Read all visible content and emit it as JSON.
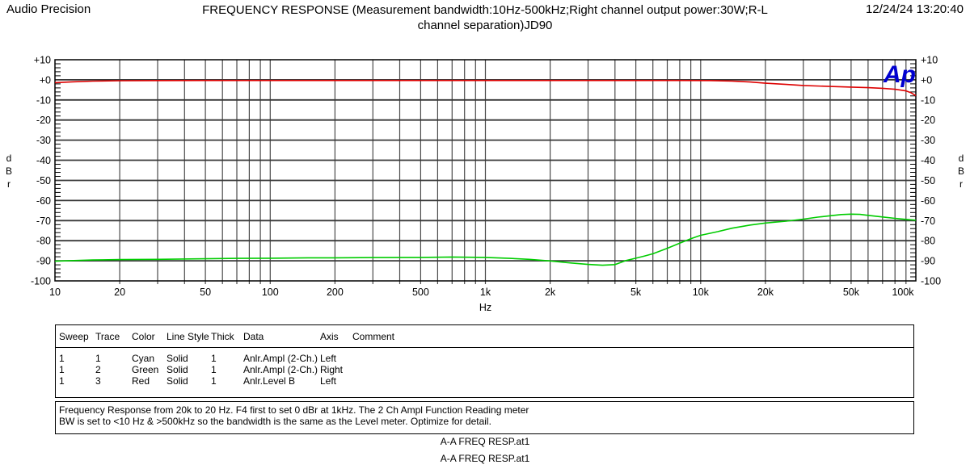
{
  "header": {
    "brand": "Audio Precision",
    "title_line1": "FREQUENCY RESPONSE  (Measurement bandwidth:10Hz-500kHz;Right channel output power:30W;R-L",
    "title_line2": "channel separation)JD90",
    "datetime": "12/24/24 13:20:40"
  },
  "chart_data": {
    "type": "line",
    "title": "FREQUENCY RESPONSE",
    "logo": "Ap",
    "logo_color": "#0000d0",
    "x_axis": {
      "label": "Hz",
      "scale": "log",
      "min": 10,
      "max": 100000,
      "ticks": [
        {
          "label": "10",
          "value": 10
        },
        {
          "label": "20",
          "value": 20
        },
        {
          "label": "50",
          "value": 50
        },
        {
          "label": "100",
          "value": 100
        },
        {
          "label": "200",
          "value": 200
        },
        {
          "label": "500",
          "value": 500
        },
        {
          "label": "1k",
          "value": 1000
        },
        {
          "label": "2k",
          "value": 2000
        },
        {
          "label": "5k",
          "value": 5000
        },
        {
          "label": "10k",
          "value": 10000
        },
        {
          "label": "20k",
          "value": 20000
        },
        {
          "label": "50k",
          "value": 50000
        },
        {
          "label": "100k",
          "value": 100000
        }
      ]
    },
    "y_axis": {
      "label": "dBr",
      "label_stacked": "d\nB\nr",
      "min": -100,
      "max": 10,
      "major_step": 10,
      "minor_step": 2,
      "tick_labels": [
        "+10",
        "+0",
        "-10",
        "-20",
        "-30",
        "-40",
        "-50",
        "-60",
        "-70",
        "-80",
        "-90",
        "-100"
      ]
    },
    "grid": true,
    "series": [
      {
        "key": "level-b",
        "name": "Anlr.Level B",
        "color": "#dd0000",
        "axis": "Left",
        "points": [
          [
            10,
            -1.4
          ],
          [
            12,
            -1.0
          ],
          [
            15,
            -0.65
          ],
          [
            20,
            -0.45
          ],
          [
            30,
            -0.35
          ],
          [
            50,
            -0.3
          ],
          [
            100,
            -0.3
          ],
          [
            200,
            -0.3
          ],
          [
            500,
            -0.3
          ],
          [
            1000,
            -0.3
          ],
          [
            2000,
            -0.3
          ],
          [
            5000,
            -0.3
          ],
          [
            8000,
            -0.3
          ],
          [
            11000,
            -0.35
          ],
          [
            14000,
            -0.6
          ],
          [
            17000,
            -1.1
          ],
          [
            20000,
            -1.7
          ],
          [
            25000,
            -2.3
          ],
          [
            30000,
            -2.8
          ],
          [
            40000,
            -3.3
          ],
          [
            50000,
            -3.6
          ],
          [
            60000,
            -3.9
          ],
          [
            70000,
            -4.2
          ],
          [
            80000,
            -4.7
          ],
          [
            90000,
            -5.5
          ],
          [
            95000,
            -6.4
          ],
          [
            100000,
            -7.9
          ]
        ]
      },
      {
        "key": "ampl-2ch",
        "name": "Anlr.Ampl (2-Ch.)",
        "color": "#00cc00",
        "axis": "Right",
        "points": [
          [
            10,
            -90.2
          ],
          [
            15,
            -89.6
          ],
          [
            20,
            -89.4
          ],
          [
            30,
            -89.3
          ],
          [
            50,
            -89.0
          ],
          [
            70,
            -88.8
          ],
          [
            100,
            -88.7
          ],
          [
            150,
            -88.5
          ],
          [
            200,
            -88.5
          ],
          [
            300,
            -88.4
          ],
          [
            500,
            -88.3
          ],
          [
            700,
            -88.1
          ],
          [
            1000,
            -88.3
          ],
          [
            1300,
            -88.8
          ],
          [
            1600,
            -89.3
          ],
          [
            2000,
            -90.1
          ],
          [
            2500,
            -91.1
          ],
          [
            3000,
            -91.8
          ],
          [
            3500,
            -92.2
          ],
          [
            4000,
            -91.9
          ],
          [
            4500,
            -89.9
          ],
          [
            5000,
            -88.7
          ],
          [
            5500,
            -87.6
          ],
          [
            6000,
            -86.5
          ],
          [
            7000,
            -83.8
          ],
          [
            8000,
            -81.2
          ],
          [
            9000,
            -79.0
          ],
          [
            10000,
            -77.3
          ],
          [
            12000,
            -75.5
          ],
          [
            14000,
            -73.8
          ],
          [
            17000,
            -72.2
          ],
          [
            20000,
            -71.2
          ],
          [
            25000,
            -70.3
          ],
          [
            30000,
            -69.3
          ],
          [
            35000,
            -68.3
          ],
          [
            40000,
            -67.6
          ],
          [
            45000,
            -67.0
          ],
          [
            50000,
            -66.8
          ],
          [
            55000,
            -66.9
          ],
          [
            60000,
            -67.4
          ],
          [
            70000,
            -68.2
          ],
          [
            80000,
            -68.9
          ],
          [
            90000,
            -69.4
          ],
          [
            100000,
            -69.8
          ]
        ]
      }
    ]
  },
  "legend": {
    "headers": [
      "Sweep",
      "Trace",
      "Color",
      "Line Style",
      "Thick",
      "Data",
      "Axis",
      "Comment"
    ],
    "rows": [
      {
        "sweep": "1",
        "trace": "1",
        "color": "Cyan",
        "line_style": "Solid",
        "thick": "1",
        "data": "Anlr.Ampl (2-Ch.)",
        "axis": "Left",
        "comment": ""
      },
      {
        "sweep": "1",
        "trace": "2",
        "color": "Green",
        "line_style": "Solid",
        "thick": "1",
        "data": "Anlr.Ampl (2-Ch.)",
        "axis": "Right",
        "comment": ""
      },
      {
        "sweep": "1",
        "trace": "3",
        "color": "Red",
        "line_style": "Solid",
        "thick": "1",
        "data": "Anlr.Level B",
        "axis": "Left",
        "comment": ""
      }
    ]
  },
  "comment_box": {
    "line1": "Frequency Response from 20k to 20 Hz.  F4 first to set 0 dBr at 1kHz.  The 2 Ch Ampl Function Reading meter",
    "line2": "BW is set to <10 Hz & >500kHz so the bandwidth is the same as the Level meter.  Optimize for detail."
  },
  "footer": {
    "file1": "A-A FREQ RESP.at1",
    "file2": "A-A FREQ RESP.at1"
  }
}
